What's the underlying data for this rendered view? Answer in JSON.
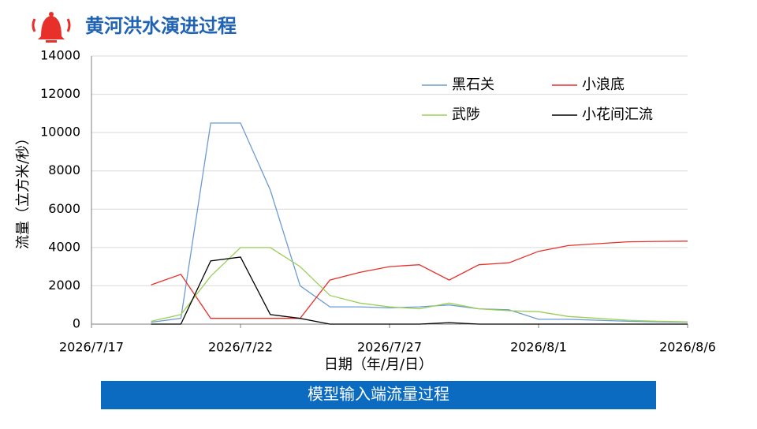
{
  "header": {
    "title": "黄河洪水演进过程"
  },
  "caption": "模型输入端流量过程",
  "chart_data": {
    "type": "line",
    "x_label": "日期（年/月/日）",
    "y_label": "流量（立方米/秒）",
    "x": [
      "2026/7/19",
      "2026/7/20",
      "2026/7/21",
      "2026/7/22",
      "2026/7/23",
      "2026/7/24",
      "2026/7/25",
      "2026/7/26",
      "2026/7/27",
      "2026/7/28",
      "2026/7/29",
      "2026/7/30",
      "2026/7/31",
      "2026/8/1",
      "2026/8/2",
      "2026/8/3",
      "2026/8/4",
      "2026/8/5",
      "2026/8/6"
    ],
    "xlim": [
      "2026/7/17",
      "2026/8/6"
    ],
    "xticks": [
      "2026/7/17",
      "2026/7/22",
      "2026/7/27",
      "2026/8/1",
      "2026/8/6"
    ],
    "ylim": [
      0,
      14000
    ],
    "yticks": [
      0,
      2000,
      4000,
      6000,
      8000,
      10000,
      12000,
      14000
    ],
    "grid": true,
    "series": [
      {
        "name": "黑石关",
        "color": "#6b9bd1",
        "values": [
          100,
          300,
          10500,
          10500,
          7000,
          2000,
          900,
          900,
          850,
          900,
          1000,
          800,
          750,
          250,
          250,
          200,
          150,
          120,
          100
        ]
      },
      {
        "name": "小浪底",
        "color": "#e8302a",
        "values": [
          2050,
          2600,
          300,
          300,
          300,
          300,
          2300,
          2700,
          3000,
          3100,
          2300,
          3100,
          3200,
          3800,
          4100,
          4200,
          4300,
          4320,
          4330
        ]
      },
      {
        "name": "武陟",
        "color": "#9bcf53",
        "values": [
          150,
          500,
          2500,
          4000,
          4000,
          3000,
          1500,
          1100,
          900,
          800,
          1100,
          800,
          700,
          650,
          400,
          300,
          200,
          150,
          120
        ]
      },
      {
        "name": "小花间汇流",
        "color": "#000000",
        "values": [
          0,
          0,
          3300,
          3500,
          500,
          300,
          0,
          0,
          0,
          0,
          80,
          0,
          0,
          0,
          0,
          0,
          0,
          0,
          0
        ]
      }
    ]
  }
}
